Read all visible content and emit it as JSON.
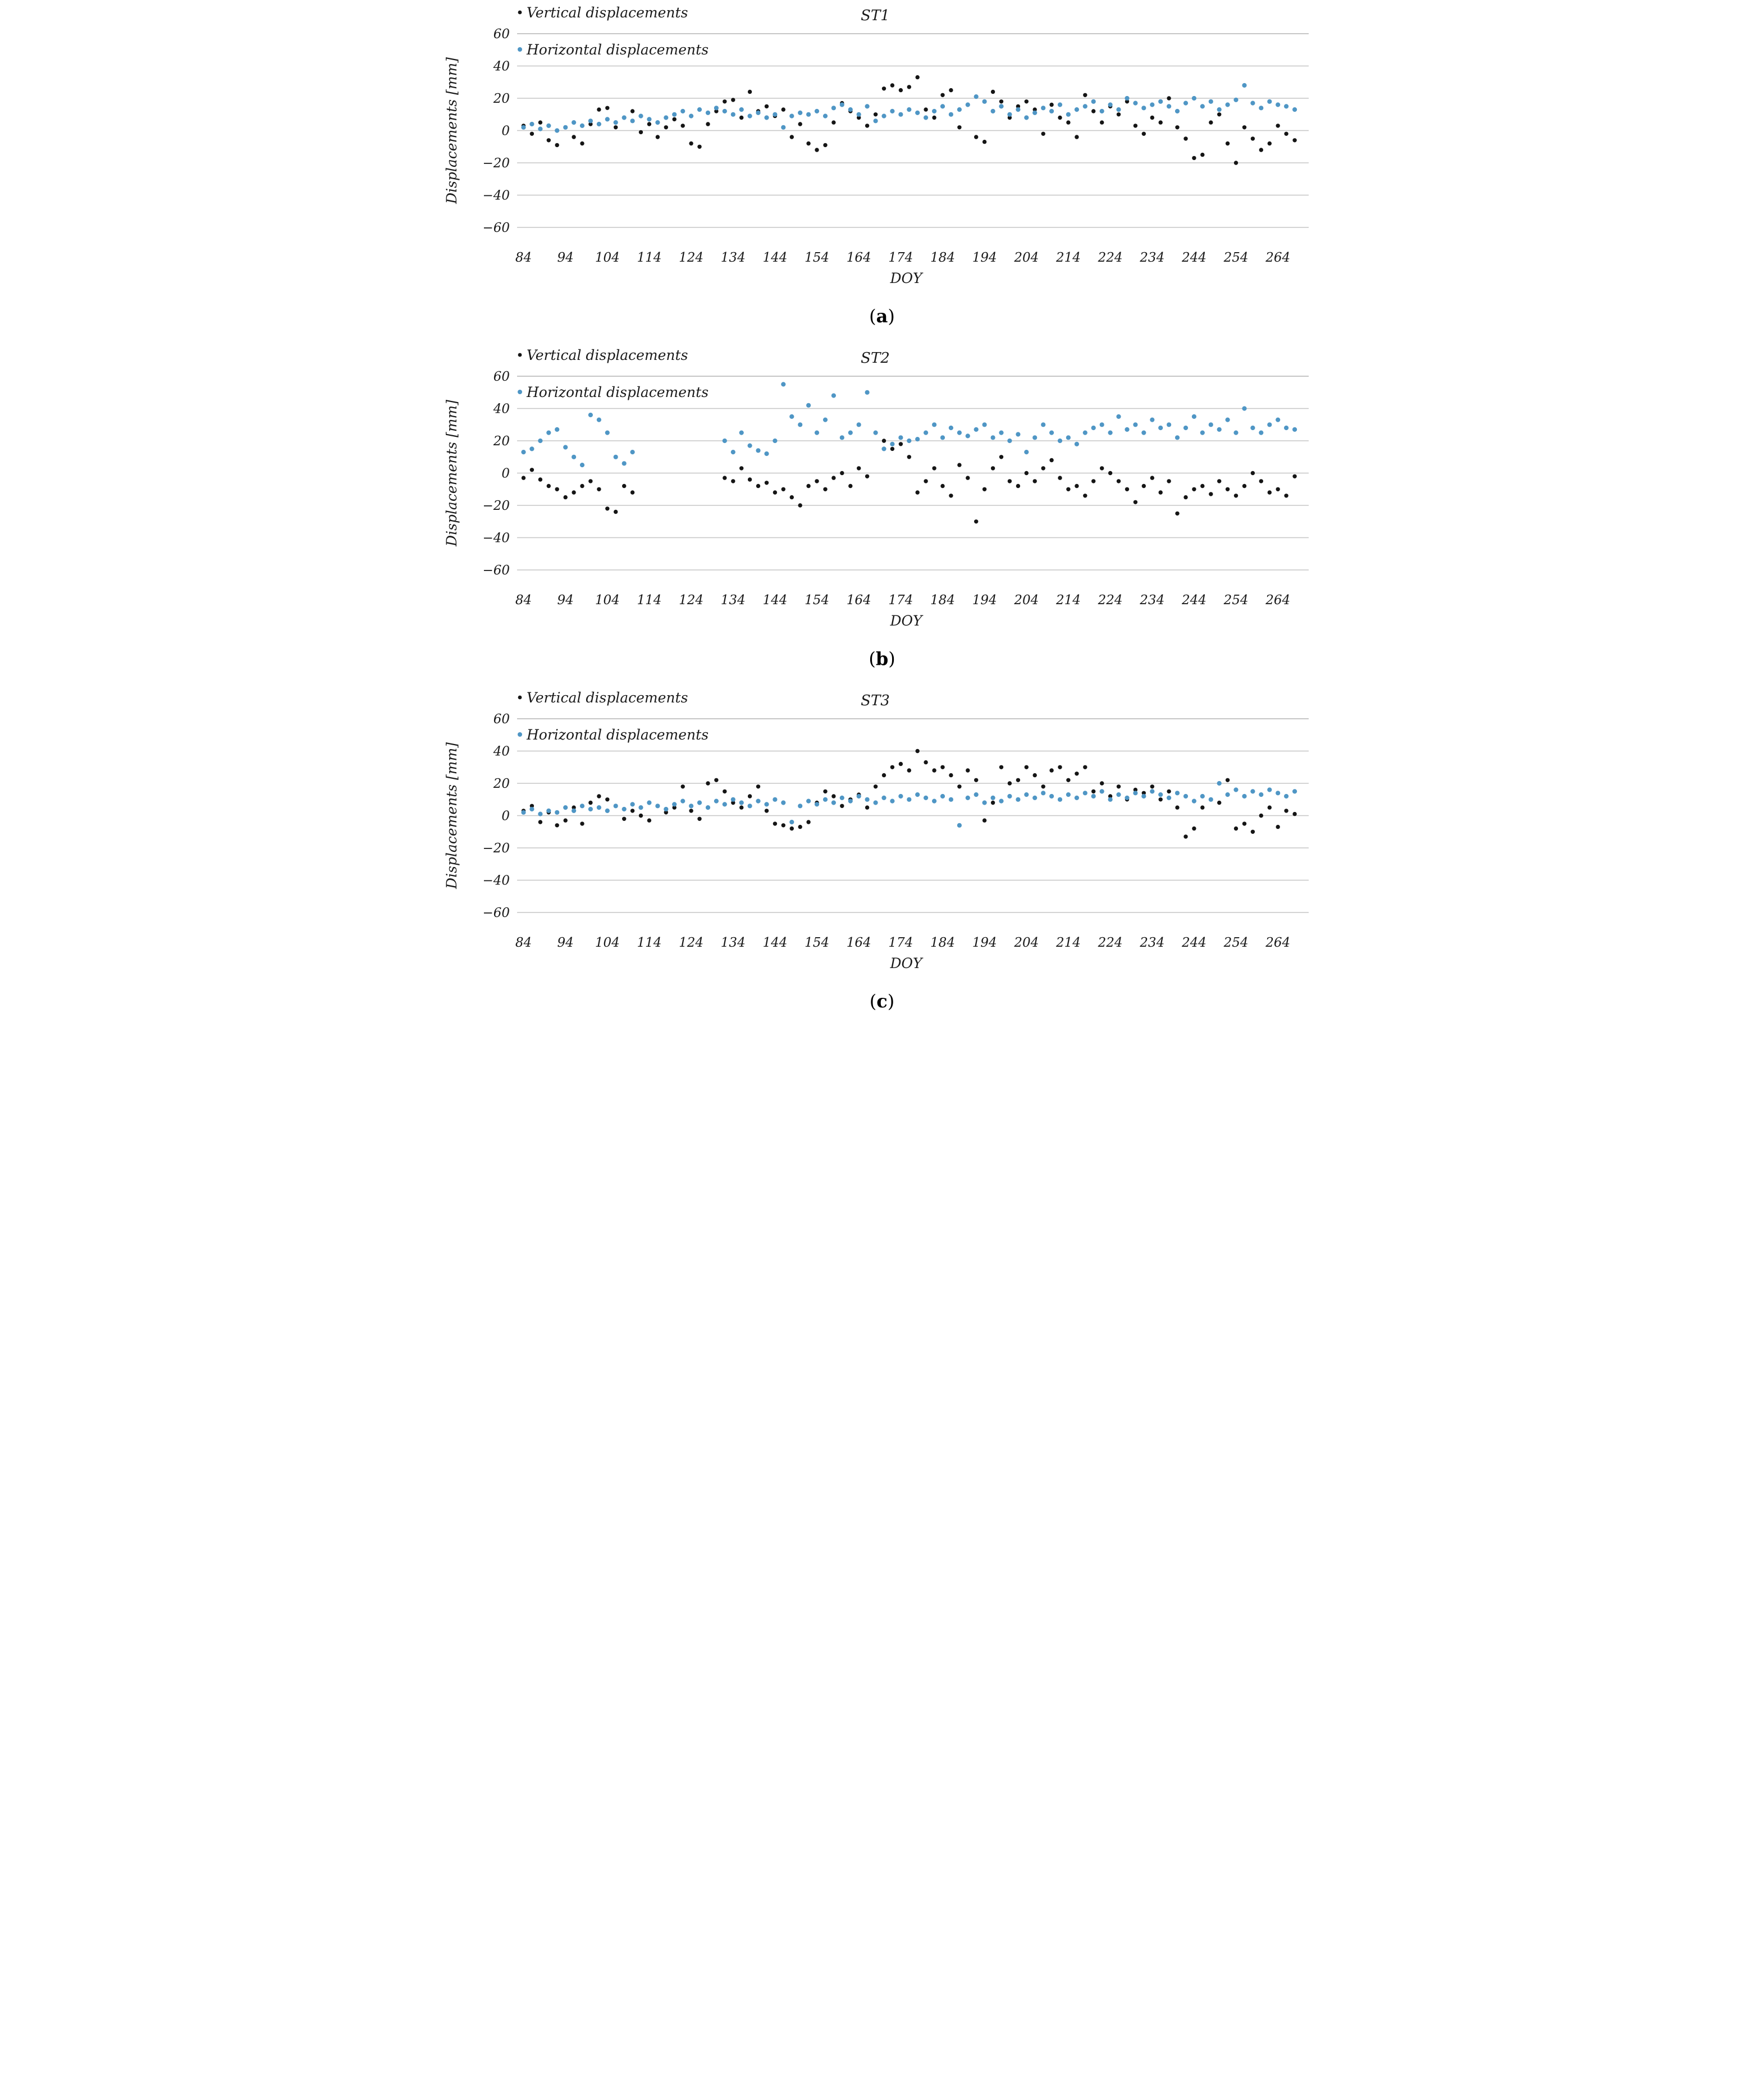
{
  "figure": {
    "background": "#ffffff"
  },
  "colors": {
    "vertical_series": "#151515",
    "horizontal_series": "#4f96c5",
    "gridline": "#c6c6c6",
    "top_gridline": "#b3b3b3",
    "text": "#1a1a1a"
  },
  "legend": {
    "position": "top-left",
    "items": [
      {
        "label": "Vertical displacements",
        "marker_color": "#151515"
      },
      {
        "label": "Horizontal displacements",
        "marker_color": "#4f96c5"
      }
    ]
  },
  "chart_data": [
    {
      "type": "scatter",
      "station_title": "ST1",
      "caption_open": "(",
      "caption_letter": "a",
      "caption_close": ")",
      "xlabel": "DOY",
      "ylabel": "Displacements [mm]",
      "xlim": [
        82,
        269
      ],
      "ylim": [
        -60,
        60
      ],
      "x_ticks": [
        84,
        94,
        104,
        114,
        124,
        134,
        144,
        154,
        164,
        174,
        184,
        194,
        204,
        214,
        224,
        234,
        244,
        254,
        264
      ],
      "y_ticks": [
        60,
        40,
        20,
        0,
        -20,
        -40,
        -60
      ],
      "grid": true,
      "legend_position": "top-left",
      "doy_start": 84,
      "doy_step": 2,
      "series": [
        {
          "name": "Vertical displacements",
          "color": "#151515",
          "values": [
            3,
            -2,
            5,
            -6,
            -9,
            2,
            -4,
            -8,
            4,
            13,
            14,
            2,
            8,
            12,
            -1,
            4,
            -4,
            2,
            7,
            3,
            -8,
            -10,
            4,
            12,
            18,
            19,
            8,
            24,
            12,
            15,
            9,
            13,
            -4,
            4,
            -8,
            -12,
            -9,
            5,
            17,
            12,
            8,
            3,
            10,
            26,
            28,
            25,
            27,
            33,
            13,
            8,
            22,
            25,
            2,
            16,
            -4,
            -7,
            24,
            18,
            8,
            15,
            18,
            13,
            -2,
            16,
            8,
            5,
            -4,
            22,
            12,
            5,
            15,
            10,
            18,
            3,
            -2,
            8,
            5,
            20,
            2,
            -5,
            -17,
            -15,
            5,
            10,
            -8,
            -20,
            2,
            -5,
            -12,
            -8,
            3,
            -2,
            -6
          ]
        },
        {
          "name": "Horizontal displacements",
          "color": "#4f96c5",
          "values": [
            2,
            4,
            1,
            3,
            0,
            2,
            5,
            3,
            6,
            4,
            7,
            5,
            8,
            6,
            9,
            7,
            5,
            8,
            10,
            12,
            9,
            13,
            11,
            14,
            12,
            10,
            13,
            9,
            11,
            8,
            10,
            2,
            9,
            11,
            10,
            12,
            9,
            14,
            16,
            13,
            10,
            15,
            6,
            9,
            12,
            10,
            13,
            11,
            8,
            12,
            15,
            10,
            13,
            16,
            21,
            18,
            12,
            15,
            10,
            13,
            8,
            11,
            14,
            12,
            16,
            10,
            13,
            15,
            18,
            12,
            16,
            13,
            20,
            17,
            14,
            16,
            18,
            15,
            12,
            17,
            20,
            15,
            18,
            13,
            16,
            19,
            28,
            17,
            14,
            18,
            16,
            15,
            13
          ]
        }
      ]
    },
    {
      "type": "scatter",
      "station_title": "ST2",
      "caption_open": "(",
      "caption_letter": "b",
      "caption_close": ")",
      "xlabel": "DOY",
      "ylabel": "Displacements [mm]",
      "xlim": [
        82,
        269
      ],
      "ylim": [
        -60,
        60
      ],
      "x_ticks": [
        84,
        94,
        104,
        114,
        124,
        134,
        144,
        154,
        164,
        174,
        184,
        194,
        204,
        214,
        224,
        234,
        244,
        254,
        264
      ],
      "y_ticks": [
        60,
        40,
        20,
        0,
        -20,
        -40,
        -60
      ],
      "grid": true,
      "legend_position": "top-left",
      "doy_start": 84,
      "doy_step": 2,
      "data_gap_doy": [
        112,
        130
      ],
      "series": [
        {
          "name": "Vertical displacements",
          "color": "#151515",
          "values": [
            -3,
            2,
            -4,
            -8,
            -10,
            -15,
            -12,
            -8,
            -5,
            -10,
            -22,
            -24,
            -8,
            -12,
            null,
            null,
            null,
            null,
            null,
            null,
            null,
            null,
            null,
            null,
            -3,
            -5,
            3,
            -4,
            -8,
            -6,
            -12,
            -10,
            -15,
            -20,
            -8,
            -5,
            -10,
            -3,
            0,
            -8,
            3,
            -2,
            25,
            20,
            15,
            18,
            10,
            -12,
            -5,
            3,
            -8,
            -14,
            5,
            -3,
            -30,
            -10,
            3,
            10,
            -5,
            -8,
            0,
            -5,
            3,
            8,
            -3,
            -10,
            -8,
            -14,
            -5,
            3,
            0,
            -5,
            -10,
            -18,
            -8,
            -3,
            -12,
            -5,
            -25,
            -15,
            -10,
            -8,
            -13,
            -5,
            -10,
            -14,
            -8,
            0,
            -5,
            -12,
            -10,
            -14,
            -2
          ]
        },
        {
          "name": "Horizontal displacements",
          "color": "#4f96c5",
          "values": [
            13,
            15,
            20,
            25,
            27,
            16,
            10,
            5,
            36,
            33,
            25,
            10,
            6,
            13,
            null,
            null,
            null,
            null,
            null,
            null,
            null,
            null,
            null,
            null,
            20,
            13,
            25,
            17,
            14,
            12,
            20,
            55,
            35,
            30,
            42,
            25,
            33,
            48,
            22,
            25,
            30,
            50,
            25,
            15,
            18,
            22,
            20,
            21,
            25,
            30,
            22,
            28,
            25,
            23,
            27,
            30,
            22,
            25,
            20,
            24,
            13,
            22,
            30,
            25,
            20,
            22,
            18,
            25,
            28,
            30,
            25,
            35,
            27,
            30,
            25,
            33,
            28,
            30,
            22,
            28,
            35,
            25,
            30,
            27,
            33,
            25,
            40,
            28,
            25,
            30,
            33,
            28,
            27
          ]
        }
      ]
    },
    {
      "type": "scatter",
      "station_title": "ST3",
      "caption_open": "(",
      "caption_letter": "c",
      "caption_close": ")",
      "xlabel": "DOY",
      "ylabel": "Displacements [mm]",
      "xlim": [
        82,
        269
      ],
      "ylim": [
        -60,
        60
      ],
      "x_ticks": [
        84,
        94,
        104,
        114,
        124,
        134,
        144,
        154,
        164,
        174,
        184,
        194,
        204,
        214,
        224,
        234,
        244,
        254,
        264
      ],
      "y_ticks": [
        60,
        40,
        20,
        0,
        -20,
        -40,
        -60
      ],
      "grid": true,
      "legend_position": "top-left",
      "doy_start": 84,
      "doy_step": 2,
      "series": [
        {
          "name": "Vertical displacements",
          "color": "#151515",
          "values": [
            3,
            6,
            -4,
            2,
            -6,
            -3,
            5,
            -5,
            8,
            12,
            10,
            6,
            -2,
            3,
            0,
            -3,
            6,
            2,
            5,
            18,
            3,
            -2,
            20,
            22,
            15,
            8,
            5,
            12,
            18,
            3,
            -5,
            -6,
            -8,
            -7,
            -4,
            8,
            15,
            12,
            6,
            10,
            13,
            5,
            18,
            25,
            30,
            32,
            28,
            40,
            33,
            28,
            30,
            25,
            18,
            28,
            22,
            -3,
            8,
            30,
            20,
            22,
            30,
            25,
            18,
            28,
            30,
            22,
            26,
            30,
            15,
            20,
            12,
            18,
            10,
            16,
            14,
            18,
            10,
            15,
            5,
            -13,
            -8,
            5,
            10,
            8,
            22,
            -8,
            -5,
            -10,
            0,
            5,
            -7,
            3,
            1
          ]
        },
        {
          "name": "Horizontal displacements",
          "color": "#4f96c5",
          "values": [
            2,
            4,
            1,
            3,
            2,
            5,
            3,
            6,
            4,
            5,
            3,
            6,
            4,
            7,
            5,
            8,
            6,
            4,
            7,
            9,
            6,
            8,
            5,
            9,
            7,
            10,
            8,
            6,
            9,
            7,
            10,
            8,
            -4,
            6,
            9,
            7,
            10,
            8,
            11,
            9,
            12,
            10,
            8,
            11,
            9,
            12,
            10,
            13,
            11,
            9,
            12,
            10,
            -6,
            11,
            13,
            8,
            11,
            9,
            12,
            10,
            13,
            11,
            14,
            12,
            10,
            13,
            11,
            14,
            12,
            15,
            10,
            13,
            11,
            14,
            12,
            15,
            13,
            11,
            14,
            12,
            9,
            12,
            10,
            20,
            13,
            16,
            12,
            15,
            13,
            16,
            14,
            12,
            15
          ]
        }
      ]
    }
  ]
}
